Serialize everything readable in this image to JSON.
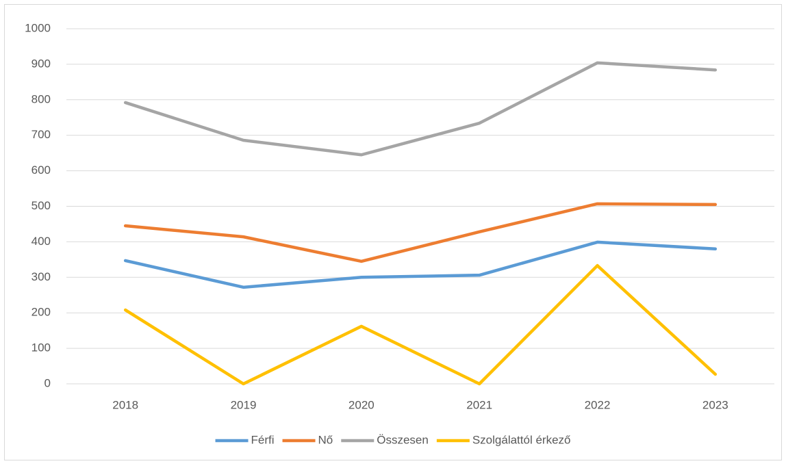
{
  "chart_data": {
    "type": "line",
    "categories": [
      "2018",
      "2019",
      "2020",
      "2021",
      "2022",
      "2023"
    ],
    "series": [
      {
        "name": "Férfi",
        "color": "#5b9bd5",
        "values": [
          347,
          272,
          300,
          306,
          399,
          380
        ]
      },
      {
        "name": "Nő",
        "color": "#ed7d31",
        "values": [
          445,
          414,
          345,
          428,
          507,
          505
        ]
      },
      {
        "name": "Összesen",
        "color": "#a5a5a5",
        "values": [
          792,
          686,
          645,
          734,
          904,
          884
        ]
      },
      {
        "name": "Szolgálattól érkező",
        "color": "#ffc000",
        "values": [
          208,
          0,
          162,
          0,
          333,
          27
        ]
      }
    ],
    "ylim": [
      0,
      1000
    ],
    "yticks": [
      0,
      100,
      200,
      300,
      400,
      500,
      600,
      700,
      800,
      900,
      1000
    ],
    "grid": true,
    "legend": "bottom"
  }
}
